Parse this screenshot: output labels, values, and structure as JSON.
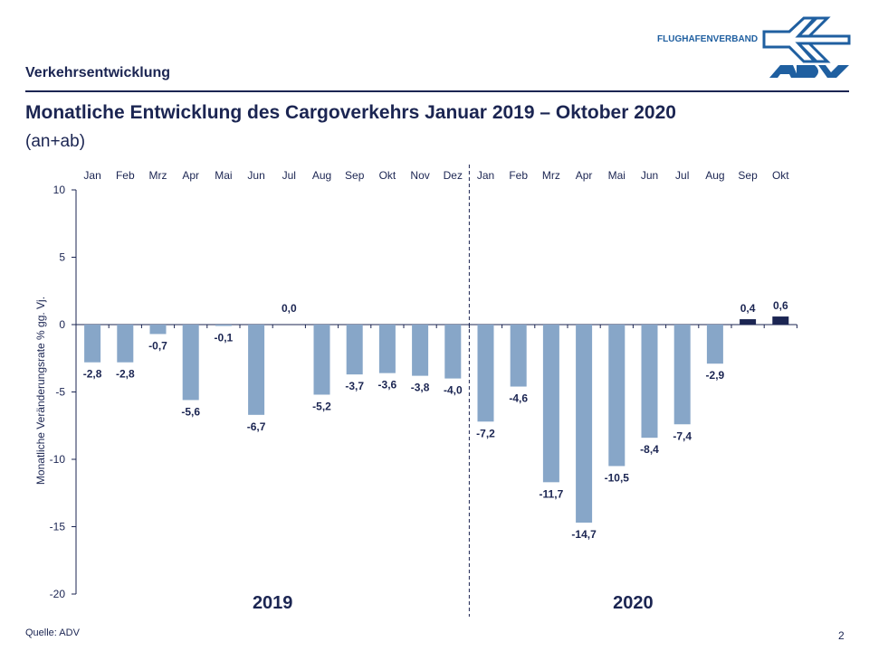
{
  "header": {
    "section": "Verkehrsentwicklung",
    "title": "Monatliche Entwicklung des Cargoverkehrs Januar 2019 – Oktober 2020",
    "subtitle": "(an+ab)",
    "logo_text": "FLUGHAFENVERBAND",
    "logo_mark": "ADV"
  },
  "footer": {
    "source": "Quelle: ADV",
    "page": "2"
  },
  "chart_data": {
    "type": "bar",
    "title": "",
    "ylabel": "Monatliche Veränderungsrate % gg. Vj.",
    "ylim": [
      -20,
      10
    ],
    "yticks": [
      10,
      5,
      0,
      -5,
      -10,
      -15,
      -20
    ],
    "categories": [
      "Jan",
      "Feb",
      "Mrz",
      "Apr",
      "Mai",
      "Jun",
      "Jul",
      "Aug",
      "Sep",
      "Okt",
      "Nov",
      "Dez",
      "Jan",
      "Feb",
      "Mrz",
      "Apr",
      "Mai",
      "Jun",
      "Jul",
      "Aug",
      "Sep",
      "Okt"
    ],
    "values": [
      -2.8,
      -2.8,
      -0.7,
      -5.6,
      -0.1,
      -6.7,
      0.0,
      -5.2,
      -3.7,
      -3.6,
      -3.8,
      -4.0,
      -7.2,
      -4.6,
      -11.7,
      -14.7,
      -10.5,
      -8.4,
      -7.4,
      -2.9,
      0.4,
      0.6
    ],
    "labels": [
      "-2,8",
      "-2,8",
      "-0,7",
      "-5,6",
      "-0,1",
      "-6,7",
      "0,0",
      "-5,2",
      "-3,7",
      "-3,6",
      "-3,8",
      "-4,0",
      "-7,2",
      "-4,6",
      "-11,7",
      "-14,7",
      "-10,5",
      "-8,4",
      "-7,4",
      "-2,9",
      "0,4",
      "0,6"
    ],
    "groups": [
      "2019",
      "2020"
    ],
    "colors": {
      "negative": "#87a6c8",
      "positive": "#1b2552",
      "text": "#1b2552"
    },
    "grid": false
  }
}
